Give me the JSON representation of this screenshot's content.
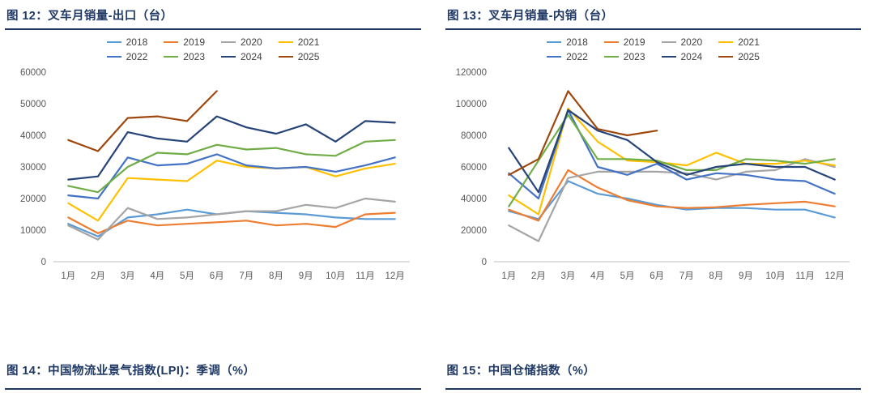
{
  "figures": [
    {
      "title": "图 12：叉车月销量-出口（台）"
    },
    {
      "title": "图 13：叉车月销量-内销（台）"
    },
    {
      "title": "图 14：中国物流业景气指数(LPI)：季调（%）"
    },
    {
      "title": "图 15：中国仓储指数（%）"
    }
  ],
  "colors": {
    "title_navy": "#1F3864",
    "axis_text": "#595959",
    "axis_line": "#BFBFBF"
  },
  "chart_data": [
    {
      "type": "line",
      "title": "图 12：叉车月销量-出口（台）",
      "categories": [
        "1月",
        "2月",
        "3月",
        "4月",
        "5月",
        "6月",
        "7月",
        "8月",
        "9月",
        "10月",
        "11月",
        "12月"
      ],
      "ylim": [
        0,
        60000
      ],
      "ytick_step": 10000,
      "grid": false,
      "legend_position": "top",
      "legend_rows": [
        [
          "2018",
          "2019",
          "2020",
          "2021"
        ],
        [
          "2022",
          "2023",
          "2024",
          "2025"
        ]
      ],
      "series": [
        {
          "name": "2018",
          "color": "#5B9BD5",
          "values": [
            12000,
            8000,
            14000,
            15000,
            16500,
            15000,
            16000,
            15500,
            15000,
            14000,
            13500,
            13500
          ]
        },
        {
          "name": "2019",
          "color": "#ED7D31",
          "values": [
            14000,
            9000,
            13000,
            11500,
            12000,
            12500,
            13000,
            11500,
            12000,
            11000,
            15000,
            15500
          ]
        },
        {
          "name": "2020",
          "color": "#A5A5A5",
          "values": [
            11500,
            7000,
            17000,
            13500,
            14000,
            15000,
            16000,
            16000,
            18000,
            17000,
            20000,
            19000
          ]
        },
        {
          "name": "2021",
          "color": "#FFC000",
          "values": [
            18500,
            13000,
            26500,
            26000,
            25500,
            32000,
            30000,
            29500,
            30000,
            27000,
            29500,
            31000
          ]
        },
        {
          "name": "2022",
          "color": "#4472C4",
          "values": [
            21000,
            20000,
            33000,
            30500,
            31000,
            34000,
            30500,
            29500,
            30000,
            28500,
            30500,
            33000
          ]
        },
        {
          "name": "2023",
          "color": "#70AD47",
          "values": [
            24000,
            22000,
            30000,
            34500,
            34000,
            37000,
            35500,
            36000,
            34000,
            33500,
            38000,
            38500
          ]
        },
        {
          "name": "2024",
          "color": "#264478",
          "values": [
            26000,
            27000,
            41000,
            39000,
            38000,
            46000,
            42500,
            40500,
            43500,
            38000,
            44500,
            44000
          ]
        },
        {
          "name": "2025",
          "color": "#9E480E",
          "values": [
            38500,
            35000,
            45500,
            46000,
            44500,
            54000,
            null,
            null,
            null,
            null,
            null,
            null
          ]
        }
      ]
    },
    {
      "type": "line",
      "title": "图 13：叉车月销量-内销（台）",
      "categories": [
        "1月",
        "2月",
        "3月",
        "4月",
        "5月",
        "6月",
        "7月",
        "8月",
        "9月",
        "10月",
        "11月",
        "12月"
      ],
      "ylim": [
        0,
        120000
      ],
      "ytick_step": 20000,
      "grid": false,
      "legend_position": "top",
      "legend_rows": [
        [
          "2018",
          "2019",
          "2020",
          "2021"
        ],
        [
          "2022",
          "2023",
          "2024",
          "2025"
        ]
      ],
      "series": [
        {
          "name": "2018",
          "color": "#5B9BD5",
          "values": [
            32000,
            27000,
            51000,
            43000,
            40000,
            36000,
            33000,
            34000,
            34000,
            33000,
            33000,
            28000
          ]
        },
        {
          "name": "2019",
          "color": "#ED7D31",
          "values": [
            33000,
            26000,
            58000,
            47000,
            39000,
            35000,
            34000,
            34500,
            36000,
            37000,
            38000,
            35000
          ]
        },
        {
          "name": "2020",
          "color": "#A5A5A5",
          "values": [
            23000,
            13000,
            53000,
            57000,
            57000,
            57000,
            56000,
            52000,
            57000,
            58000,
            65000,
            60000
          ]
        },
        {
          "name": "2021",
          "color": "#FFC000",
          "values": [
            42000,
            30000,
            97000,
            76000,
            64000,
            63000,
            61000,
            69000,
            62000,
            62000,
            64000,
            61000
          ]
        },
        {
          "name": "2022",
          "color": "#4472C4",
          "values": [
            56000,
            40000,
            96000,
            60000,
            55000,
            62000,
            52000,
            56000,
            55000,
            52000,
            51000,
            43000
          ]
        },
        {
          "name": "2023",
          "color": "#70AD47",
          "values": [
            35000,
            64000,
            93000,
            65000,
            65000,
            64000,
            58000,
            58000,
            65000,
            64000,
            62000,
            65000
          ]
        },
        {
          "name": "2024",
          "color": "#264478",
          "values": [
            72000,
            44000,
            96000,
            83000,
            77000,
            63000,
            55000,
            60000,
            62000,
            60000,
            60000,
            52000
          ]
        },
        {
          "name": "2025",
          "color": "#9E480E",
          "values": [
            55000,
            65000,
            108000,
            84000,
            80000,
            83000,
            null,
            null,
            null,
            null,
            null,
            null
          ]
        }
      ]
    }
  ]
}
